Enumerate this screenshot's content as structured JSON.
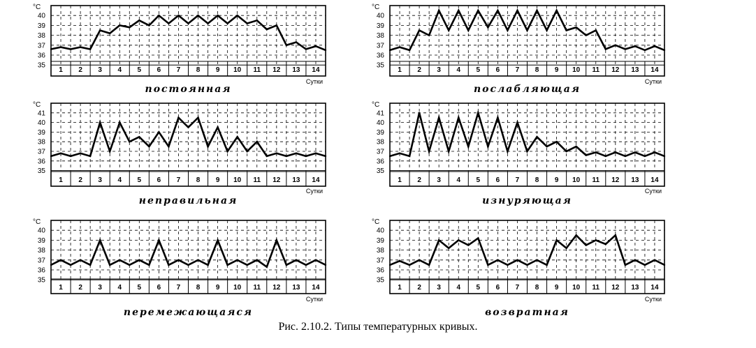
{
  "caption": "Рис. 2.10.2. Типы температурных кривых.",
  "chart_data": [
    {
      "type": "line",
      "title": "постоянная",
      "ylabel": "°C",
      "xlabel": "Сутки",
      "yticks": [
        "40",
        "39",
        "38",
        "37",
        "36",
        "35"
      ],
      "ylim": [
        35,
        40
      ],
      "categories": [
        "1",
        "2",
        "3",
        "4",
        "5",
        "6",
        "7",
        "8",
        "9",
        "10",
        "11",
        "12",
        "13",
        "14"
      ],
      "x": [
        0.5,
        1,
        1.5,
        2,
        2.5,
        3,
        3.5,
        4,
        4.5,
        5,
        5.5,
        6,
        6.5,
        7,
        7.5,
        8,
        8.5,
        9,
        9.5,
        10,
        10.5,
        11,
        11.5,
        12,
        12.5,
        13,
        13.5,
        14,
        14.5
      ],
      "values": [
        36.6,
        36.8,
        36.6,
        36.8,
        36.6,
        38.5,
        38.2,
        39.0,
        38.8,
        39.5,
        39.0,
        40.0,
        39.2,
        40.0,
        39.2,
        40.0,
        39.2,
        40.0,
        39.2,
        40.0,
        39.2,
        39.5,
        38.6,
        39.0,
        37.0,
        37.3,
        36.6,
        36.9,
        36.5
      ]
    },
    {
      "type": "line",
      "title": "послабляющая",
      "ylabel": "°C",
      "xlabel": "Сутки",
      "yticks": [
        "40",
        "39",
        "38",
        "37",
        "36",
        "35"
      ],
      "ylim": [
        35,
        40.5
      ],
      "categories": [
        "1",
        "2",
        "3",
        "4",
        "5",
        "6",
        "7",
        "8",
        "9",
        "10",
        "11",
        "12",
        "13",
        "14"
      ],
      "x": [
        0.5,
        1,
        1.5,
        2,
        2.5,
        3,
        3.5,
        4,
        4.5,
        5,
        5.5,
        6,
        6.5,
        7,
        7.5,
        8,
        8.5,
        9,
        9.5,
        10,
        10.5,
        11,
        11.5,
        12,
        12.5,
        13,
        13.5,
        14,
        14.5
      ],
      "values": [
        36.5,
        36.8,
        36.5,
        38.5,
        38.0,
        40.5,
        38.5,
        40.5,
        38.5,
        40.5,
        38.8,
        40.5,
        38.5,
        40.5,
        38.5,
        40.5,
        38.5,
        40.5,
        38.5,
        38.8,
        38.0,
        38.5,
        36.6,
        37.0,
        36.6,
        36.9,
        36.5,
        36.9,
        36.5
      ]
    },
    {
      "type": "line",
      "title": "неправильная",
      "ylabel": "°C",
      "xlabel": "Сутки",
      "yticks": [
        "41",
        "40",
        "39",
        "38",
        "37",
        "36",
        "35"
      ],
      "ylim": [
        35,
        41
      ],
      "categories": [
        "1",
        "2",
        "3",
        "4",
        "5",
        "6",
        "7",
        "8",
        "9",
        "10",
        "11",
        "12",
        "13",
        "14"
      ],
      "x": [
        0.5,
        1,
        1.5,
        2,
        2.5,
        3,
        3.5,
        4,
        4.5,
        5,
        5.5,
        6,
        6.5,
        7,
        7.5,
        8,
        8.5,
        9,
        9.5,
        10,
        10.5,
        11,
        11.5,
        12,
        12.5,
        13,
        13.5,
        14,
        14.5
      ],
      "values": [
        36.5,
        36.8,
        36.5,
        36.8,
        36.5,
        40.0,
        37.0,
        40.0,
        38.0,
        38.5,
        37.5,
        39.0,
        37.5,
        40.5,
        39.5,
        40.5,
        37.5,
        39.5,
        37.0,
        38.5,
        37.0,
        38.0,
        36.5,
        36.8,
        36.5,
        36.8,
        36.5,
        36.8,
        36.5
      ]
    },
    {
      "type": "line",
      "title": "изнуряющая",
      "ylabel": "°C",
      "xlabel": "Сутки",
      "yticks": [
        "41",
        "40",
        "39",
        "38",
        "37",
        "36",
        "35"
      ],
      "ylim": [
        35,
        41
      ],
      "categories": [
        "1",
        "2",
        "3",
        "4",
        "5",
        "6",
        "7",
        "8",
        "9",
        "10",
        "11",
        "12",
        "13",
        "14"
      ],
      "x": [
        0.5,
        1,
        1.5,
        2,
        2.5,
        3,
        3.5,
        4,
        4.5,
        5,
        5.5,
        6,
        6.5,
        7,
        7.5,
        8,
        8.5,
        9,
        9.5,
        10,
        10.5,
        11,
        11.5,
        12,
        12.5,
        13,
        13.5,
        14,
        14.5
      ],
      "values": [
        36.5,
        36.8,
        36.5,
        41.0,
        37.0,
        40.5,
        37.0,
        40.5,
        37.5,
        41.0,
        37.5,
        40.5,
        37.0,
        40.0,
        37.0,
        38.5,
        37.5,
        38.0,
        37.0,
        37.5,
        36.6,
        36.9,
        36.5,
        36.9,
        36.5,
        36.9,
        36.5,
        36.9,
        36.5
      ]
    },
    {
      "type": "line",
      "title": "перемежающаяся",
      "ylabel": "°C",
      "xlabel": "Сутки",
      "yticks": [
        "40",
        "39",
        "38",
        "37",
        "36",
        "35"
      ],
      "ylim": [
        35,
        40
      ],
      "categories": [
        "1",
        "2",
        "3",
        "4",
        "5",
        "6",
        "7",
        "8",
        "9",
        "10",
        "11",
        "12",
        "13",
        "14"
      ],
      "x": [
        0.5,
        1,
        1.5,
        2,
        2.5,
        3,
        3.5,
        4,
        4.5,
        5,
        5.5,
        6,
        6.5,
        7,
        7.5,
        8,
        8.5,
        9,
        9.5,
        10,
        10.5,
        11,
        11.5,
        12,
        12.5,
        13,
        13.5,
        14,
        14.5
      ],
      "values": [
        36.5,
        37.0,
        36.5,
        37.0,
        36.5,
        39.0,
        36.5,
        37.0,
        36.5,
        37.0,
        36.5,
        39.0,
        36.5,
        37.0,
        36.5,
        37.0,
        36.5,
        39.0,
        36.5,
        37.0,
        36.5,
        37.0,
        36.3,
        39.0,
        36.5,
        37.0,
        36.5,
        37.0,
        36.5
      ]
    },
    {
      "type": "line",
      "title": "возвратная",
      "ylabel": "°C",
      "xlabel": "Сутки",
      "yticks": [
        "40",
        "39",
        "38",
        "37",
        "36",
        "35"
      ],
      "ylim": [
        35,
        40
      ],
      "categories": [
        "1",
        "2",
        "3",
        "4",
        "5",
        "6",
        "7",
        "8",
        "9",
        "10",
        "11",
        "12",
        "13",
        "14"
      ],
      "x": [
        0.5,
        1,
        1.5,
        2,
        2.5,
        3,
        3.5,
        4,
        4.5,
        5,
        5.5,
        6,
        6.5,
        7,
        7.5,
        8,
        8.5,
        9,
        9.5,
        10,
        10.5,
        11,
        11.5,
        12,
        12.5,
        13,
        13.5,
        14,
        14.5
      ],
      "values": [
        36.5,
        36.9,
        36.5,
        37.0,
        36.5,
        39.0,
        38.2,
        39.0,
        38.5,
        39.2,
        36.5,
        37.0,
        36.5,
        37.0,
        36.5,
        37.0,
        36.5,
        39.0,
        38.2,
        39.5,
        38.5,
        39.0,
        38.6,
        39.5,
        36.5,
        37.0,
        36.5,
        37.0,
        36.5
      ]
    }
  ]
}
